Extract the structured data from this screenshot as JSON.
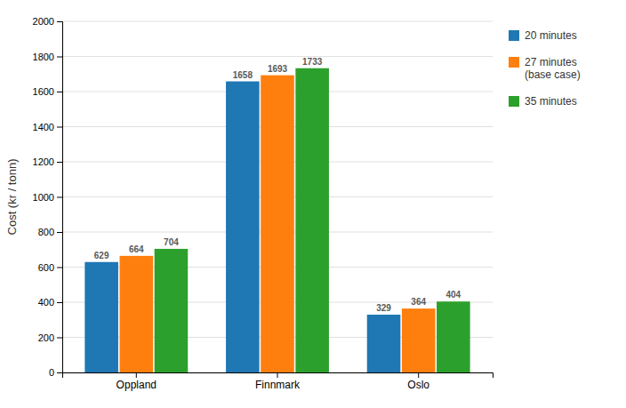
{
  "chart_data": {
    "type": "bar",
    "ylabel": "Cost (kr / tonn)",
    "categories": [
      "Oppland",
      "Finnmark",
      "Oslo"
    ],
    "series": [
      {
        "name": "20 minutes",
        "values": [
          629,
          1658,
          329
        ]
      },
      {
        "name": "27 minutes\n(base case)",
        "values": [
          664,
          1693,
          364
        ]
      },
      {
        "name": "35 minutes",
        "values": [
          704,
          1733,
          404
        ]
      }
    ],
    "ylim": [
      0,
      2000
    ],
    "yticks": [
      0,
      200,
      400,
      600,
      800,
      1000,
      1200,
      1400,
      1600,
      1800,
      2000
    ],
    "grid": true,
    "legend": "upper right",
    "data_labels": true
  }
}
